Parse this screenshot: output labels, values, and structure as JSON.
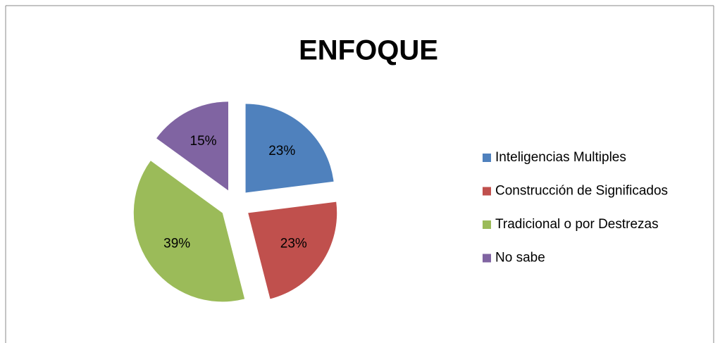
{
  "chart_data": {
    "type": "pie",
    "title": "ENFOQUE",
    "categories": [
      "Inteligencias Multiples",
      "Construcción de Significados",
      "Tradicional o por Destrezas",
      "No sabe"
    ],
    "values": [
      23,
      23,
      39,
      15
    ],
    "value_labels": [
      "23%",
      "23%",
      "39%",
      "15%"
    ],
    "colors": [
      "#4f81bd",
      "#c0504d",
      "#9bbb59",
      "#8064a2"
    ],
    "legend": "right"
  }
}
